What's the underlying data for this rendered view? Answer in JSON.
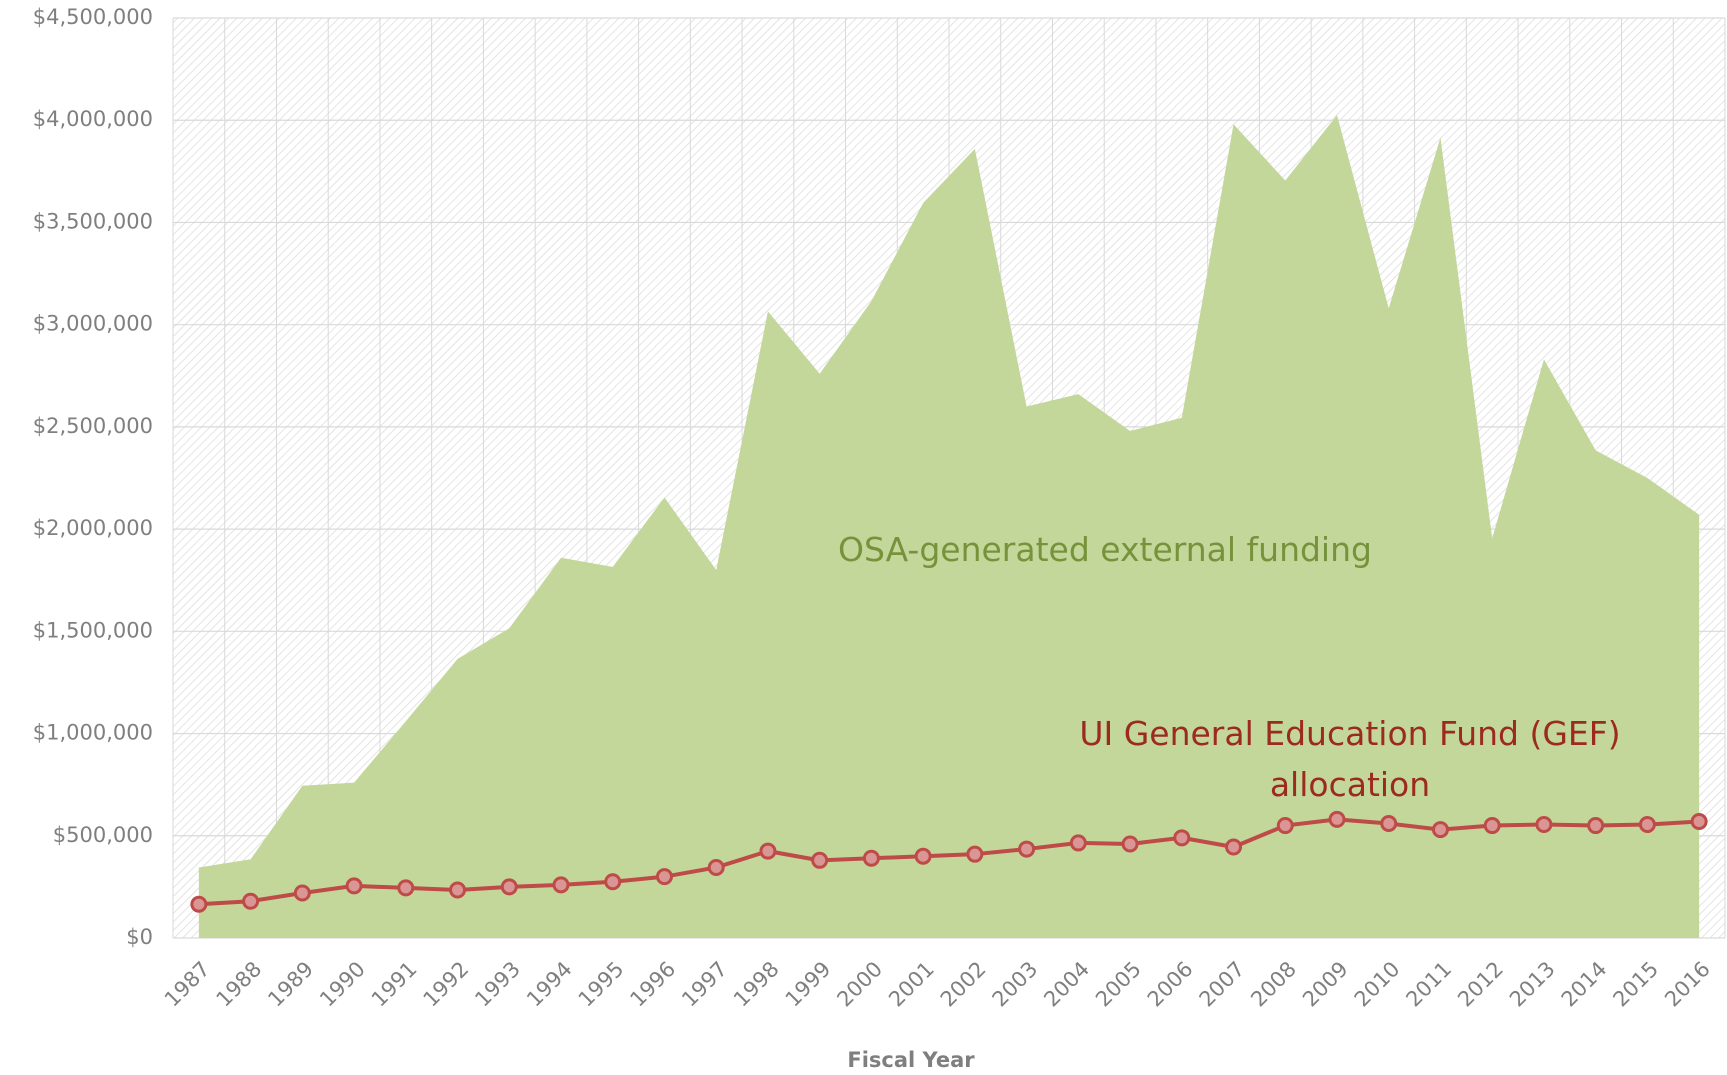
{
  "chart_data": {
    "type": "area_line",
    "x_label": "Fiscal Year",
    "categories": [
      "1987",
      "1988",
      "1989",
      "1990",
      "1991",
      "1992",
      "1993",
      "1994",
      "1995",
      "1996",
      "1997",
      "1998",
      "1999",
      "2000",
      "2001",
      "2002",
      "2003",
      "2004",
      "2005",
      "2006",
      "2007",
      "2008",
      "2009",
      "2010",
      "2011",
      "2012",
      "2013",
      "2014",
      "2015",
      "2016"
    ],
    "series": [
      {
        "name": "OSA-generated external funding",
        "color": "#c4d79b",
        "label_color": "#76933c",
        "values": [
          345000,
          385000,
          745000,
          760000,
          1060000,
          1365000,
          1515000,
          1860000,
          1815000,
          2155000,
          1800000,
          3065000,
          2760000,
          3115000,
          3595000,
          3860000,
          2600000,
          2660000,
          2480000,
          2545000,
          3980000,
          3705000,
          4025000,
          3080000,
          3915000,
          1955000,
          2830000,
          2385000,
          2250000,
          2070000
        ]
      },
      {
        "name": "UI General Education Fund (GEF) allocation",
        "color": "#be4b48",
        "marker_fill": "#d99694",
        "label_color": "#9b2a1f",
        "values": [
          165000,
          180000,
          220000,
          255000,
          245000,
          235000,
          250000,
          260000,
          275000,
          300000,
          345000,
          425000,
          380000,
          390000,
          400000,
          410000,
          435000,
          465000,
          460000,
          490000,
          445000,
          550000,
          580000,
          560000,
          530000,
          550000,
          555000,
          550000,
          555000,
          570000
        ]
      }
    ],
    "ylim": [
      0,
      4500000
    ],
    "yticks": [
      {
        "value": 0,
        "label": "$0"
      },
      {
        "value": 500000,
        "label": "$500,000"
      },
      {
        "value": 1000000,
        "label": "$1,000,000"
      },
      {
        "value": 1500000,
        "label": "$1,500,000"
      },
      {
        "value": 2000000,
        "label": "$2,000,000"
      },
      {
        "value": 2500000,
        "label": "$2,500,000"
      },
      {
        "value": 3000000,
        "label": "$3,000,000"
      },
      {
        "value": 3500000,
        "label": "$3,500,000"
      },
      {
        "value": 4000000,
        "label": "$4,000,000"
      },
      {
        "value": 4500000,
        "label": "$4,500,000"
      }
    ],
    "grid": true
  }
}
